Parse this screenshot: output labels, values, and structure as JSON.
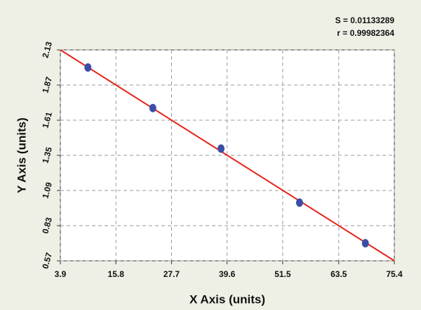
{
  "chart_data": {
    "type": "scatter",
    "x_label": "X Axis (units)",
    "y_label": "Y Axis (units)",
    "annotations": [
      "S = 0.01133289",
      "r = 0.99982364"
    ],
    "series": [
      {
        "color": "#3a4ea6",
        "x": [
          9.8,
          23.7,
          38.3,
          55.1,
          69.2
        ],
        "values": [
          2.0,
          1.7,
          1.4,
          1.0,
          0.7
        ]
      }
    ],
    "fit_line": {
      "color": "#e3241b",
      "x": [
        3.9,
        75.4
      ],
      "values": [
        2.13,
        0.57
      ]
    },
    "xlim": [
      3.9,
      75.4
    ],
    "xticks": [
      3.9,
      15.8,
      27.7,
      39.6,
      51.5,
      63.5,
      75.4
    ],
    "ylim": [
      0.57,
      2.13
    ],
    "yticks": [
      0.57,
      0.83,
      1.09,
      1.35,
      1.61,
      1.87,
      2.13
    ],
    "grid": true
  }
}
